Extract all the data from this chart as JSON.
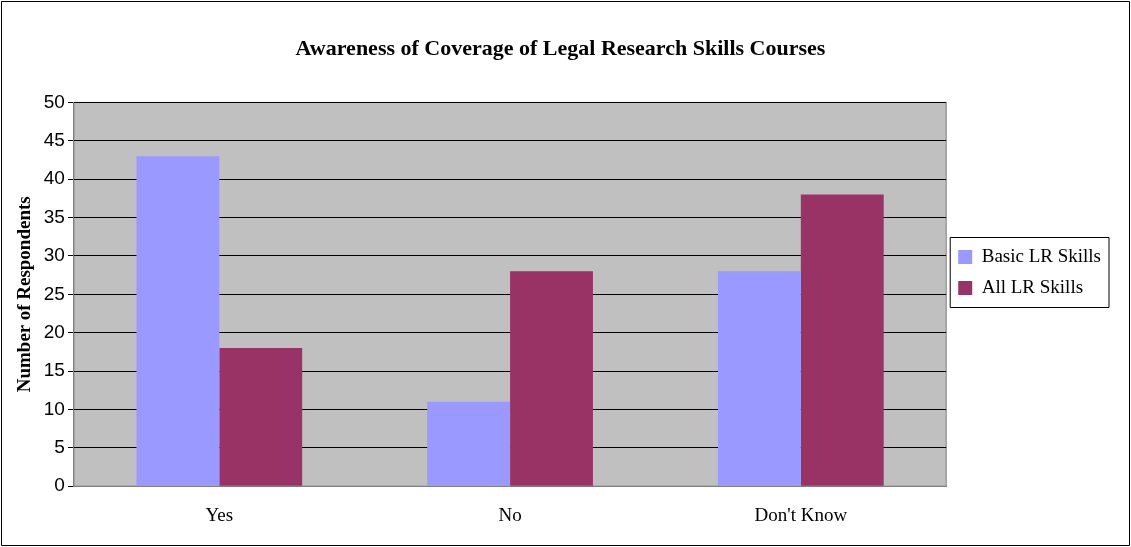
{
  "chart_data": {
    "type": "bar",
    "title": "Awareness of Coverage of Legal Research Skills Courses",
    "ylabel": "Number of Respondents",
    "categories": [
      "Yes",
      "No",
      "Don't Know"
    ],
    "series": [
      {
        "name": "Basic LR Skills",
        "color": "#9999ff",
        "values": [
          43,
          11,
          28
        ]
      },
      {
        "name": "All LR Skills",
        "color": "#993366",
        "values": [
          18,
          28,
          38
        ]
      }
    ],
    "ylim": [
      0,
      50
    ],
    "yticks": [
      0,
      5,
      10,
      15,
      20,
      25,
      30,
      35,
      40,
      45,
      50
    ],
    "grid": "y",
    "legend": "right"
  }
}
